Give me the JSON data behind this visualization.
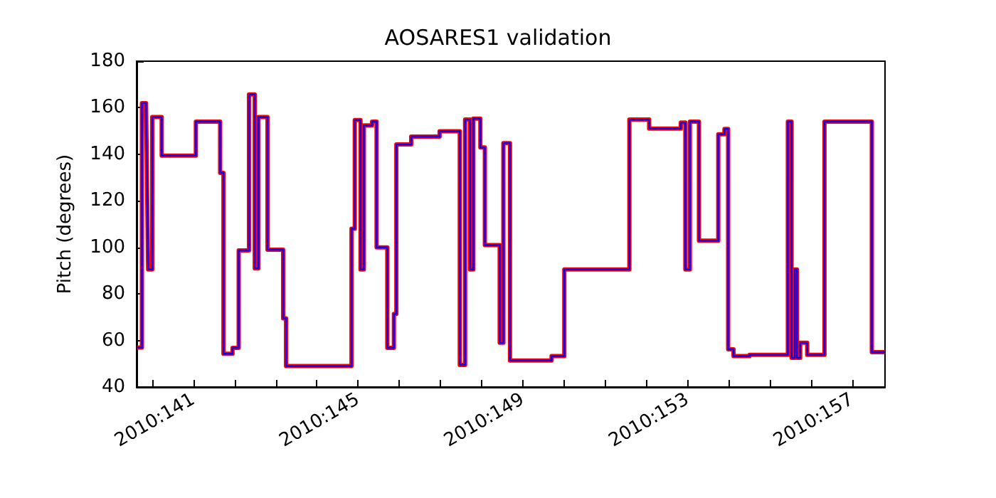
{
  "chart_data": {
    "type": "line",
    "title": "AOSARES1 validation",
    "ylabel": "Pitch (degrees)",
    "x": [
      "2010-05-19T15:07",
      "2010-05-19T18:00",
      "2010-05-19T18:00",
      "2010-05-19T20:24",
      "2010-05-19T21:36",
      "2010-05-20T00:00",
      "2010-05-20T00:00",
      "2010-05-20T05:31",
      "2010-05-20T05:31",
      "2010-05-21T01:26",
      "2010-05-21T01:26",
      "2010-05-21T15:36",
      "2010-05-21T15:36",
      "2010-05-21T17:31",
      "2010-05-21T17:31",
      "2010-05-21T22:48",
      "2010-05-21T22:48",
      "2010-05-22T02:24",
      "2010-05-22T02:24",
      "2010-05-22T08:24",
      "2010-05-22T08:24",
      "2010-05-22T11:46",
      "2010-05-22T11:46",
      "2010-05-22T13:55",
      "2010-05-22T13:55",
      "2010-05-22T19:12",
      "2010-05-22T19:12",
      "2010-05-23T04:19",
      "2010-05-23T04:19",
      "2010-05-23T06:00",
      "2010-05-23T06:00",
      "2010-05-24T20:10",
      "2010-05-24T20:10",
      "2010-05-24T22:05",
      "2010-05-24T22:05",
      "2010-05-25T01:26",
      "2010-05-25T01:26",
      "2010-05-25T03:22",
      "2010-05-25T03:22",
      "2010-05-25T08:10",
      "2010-05-25T08:10",
      "2010-05-25T10:48",
      "2010-05-25T10:48",
      "2010-05-25T17:02",
      "2010-05-25T17:02",
      "2010-05-25T20:53",
      "2010-05-25T20:53",
      "2010-05-25T22:19",
      "2010-05-25T22:19",
      "2010-05-26T06:58",
      "2010-05-26T06:58",
      "2010-05-26T23:31",
      "2010-05-26T23:31",
      "2010-05-27T11:17",
      "2010-05-27T11:17",
      "2010-05-27T14:24",
      "2010-05-27T14:24",
      "2010-05-27T17:17",
      "2010-05-27T17:17",
      "2010-05-27T19:12",
      "2010-05-27T19:12",
      "2010-05-27T23:17",
      "2010-05-27T23:17",
      "2010-05-28T01:55",
      "2010-05-28T01:55",
      "2010-05-28T10:34",
      "2010-05-28T10:34",
      "2010-05-28T12:43",
      "2010-05-28T12:43",
      "2010-05-28T16:34",
      "2010-05-28T16:34",
      "2010-05-29T16:48",
      "2010-05-29T16:48",
      "2010-05-30T00:14",
      "2010-05-30T00:14",
      "2010-05-31T14:10",
      "2010-05-31T14:10",
      "2010-06-01T01:41",
      "2010-06-01T01:41",
      "2010-06-01T20:10",
      "2010-06-01T20:10",
      "2010-06-01T22:48",
      "2010-06-01T22:48",
      "2010-06-02T01:26",
      "2010-06-02T01:26",
      "2010-06-02T06:43",
      "2010-06-02T06:43",
      "2010-06-02T18:00",
      "2010-06-02T18:00",
      "2010-06-02T21:36",
      "2010-06-02T21:36",
      "2010-06-02T23:46",
      "2010-06-02T23:46",
      "2010-06-03T02:53",
      "2010-06-03T02:53",
      "2010-06-03T12:14",
      "2010-06-03T12:14",
      "2010-06-04T10:34",
      "2010-06-04T10:34",
      "2010-06-04T12:43",
      "2010-06-04T12:43",
      "2010-06-04T14:38",
      "2010-06-04T14:38",
      "2010-06-04T15:50",
      "2010-06-04T15:50",
      "2010-06-04T17:46",
      "2010-06-04T17:46",
      "2010-06-04T21:50",
      "2010-06-04T21:50",
      "2010-06-05T07:55",
      "2010-06-05T07:55",
      "2010-06-06T11:31",
      "2010-06-06T11:31",
      "2010-06-06T19:12"
    ],
    "series": [
      {
        "color": "#ff0000",
        "values": [
          57,
          57,
          162,
          162,
          90.5,
          90.5,
          156,
          156,
          139.4,
          139.4,
          154,
          154,
          132,
          132,
          54.3,
          54.3,
          56.8,
          56.8,
          98.7,
          98.7,
          165.7,
          165.7,
          91,
          91,
          156,
          156,
          99,
          99,
          69.5,
          69.5,
          49,
          49,
          108,
          108,
          154.7,
          154.7,
          90.5,
          90.5,
          152.4,
          152.4,
          154,
          154,
          100,
          100,
          56.8,
          56.8,
          71.4,
          71.4,
          144.2,
          144.2,
          147.6,
          147.6,
          149.9,
          149.9,
          49.5,
          49.5,
          154.9,
          154.9,
          90.5,
          90.5,
          155.3,
          155.3,
          142.9,
          142.9,
          101,
          101,
          59,
          59,
          144.8,
          144.8,
          51.4,
          51.4,
          53.3,
          53.3,
          90.5,
          90.5,
          154.9,
          154.9,
          151,
          151,
          153.6,
          153.6,
          90.5,
          90.5,
          154,
          154,
          102.9,
          102.9,
          148.6,
          148.6,
          150.9,
          150.9,
          56.2,
          56.2,
          53.3,
          53.3,
          53.8,
          53.8,
          154,
          154,
          52.5,
          52.5,
          90.5,
          90.5,
          52.5,
          52.5,
          59,
          59,
          53.8,
          53.8,
          154,
          154,
          55,
          55
        ]
      },
      {
        "color": "#0000ff",
        "values": [
          57,
          57,
          162,
          162,
          90.5,
          90.5,
          156,
          156,
          139.4,
          139.4,
          154,
          154,
          132,
          132,
          54.3,
          54.3,
          56.8,
          56.8,
          98.7,
          98.7,
          165.7,
          165.7,
          91,
          91,
          156,
          156,
          99,
          99,
          69.5,
          69.5,
          49,
          49,
          108,
          108,
          154.7,
          154.7,
          90.5,
          90.5,
          152.4,
          152.4,
          154,
          154,
          100,
          100,
          56.8,
          56.8,
          71.4,
          71.4,
          144.2,
          144.2,
          147.6,
          147.6,
          149.9,
          149.9,
          49.5,
          49.5,
          154.9,
          154.9,
          90.5,
          90.5,
          155.3,
          155.3,
          142.9,
          142.9,
          101,
          101,
          59,
          59,
          144.8,
          144.8,
          51.4,
          51.4,
          53.3,
          53.3,
          90.5,
          90.5,
          154.9,
          154.9,
          151,
          151,
          153.6,
          153.6,
          90.5,
          90.5,
          154,
          154,
          102.9,
          102.9,
          148.6,
          148.6,
          150.9,
          150.9,
          56.2,
          56.2,
          53.3,
          53.3,
          53.8,
          53.8,
          154,
          154,
          52.5,
          52.5,
          90.5,
          90.5,
          52.5,
          52.5,
          59,
          59,
          53.8,
          53.8,
          154,
          154,
          55,
          55
        ]
      }
    ],
    "xlim": [
      "2010-05-19T14:53",
      "2010-06-06T19:12"
    ],
    "xticks": [
      {
        "value": "2010-05-20T00:00",
        "label": null
      },
      {
        "value": "2010-05-21T00:00",
        "label": "2010:141"
      },
      {
        "value": "2010-05-22T00:00",
        "label": null
      },
      {
        "value": "2010-05-23T00:00",
        "label": null
      },
      {
        "value": "2010-05-24T00:00",
        "label": null
      },
      {
        "value": "2010-05-25T00:00",
        "label": "2010:145"
      },
      {
        "value": "2010-05-26T00:00",
        "label": null
      },
      {
        "value": "2010-05-27T00:00",
        "label": null
      },
      {
        "value": "2010-05-28T00:00",
        "label": null
      },
      {
        "value": "2010-05-29T00:00",
        "label": "2010:149"
      },
      {
        "value": "2010-05-30T00:00",
        "label": null
      },
      {
        "value": "2010-05-31T00:00",
        "label": null
      },
      {
        "value": "2010-06-01T00:00",
        "label": null
      },
      {
        "value": "2010-06-02T00:00",
        "label": "2010:153"
      },
      {
        "value": "2010-06-03T00:00",
        "label": null
      },
      {
        "value": "2010-06-04T00:00",
        "label": null
      },
      {
        "value": "2010-06-05T00:00",
        "label": null
      },
      {
        "value": "2010-06-06T00:00",
        "label": "2010:157"
      }
    ],
    "ylim": [
      40,
      180
    ],
    "yticks": [
      40,
      60,
      80,
      100,
      120,
      140,
      160,
      180
    ]
  }
}
